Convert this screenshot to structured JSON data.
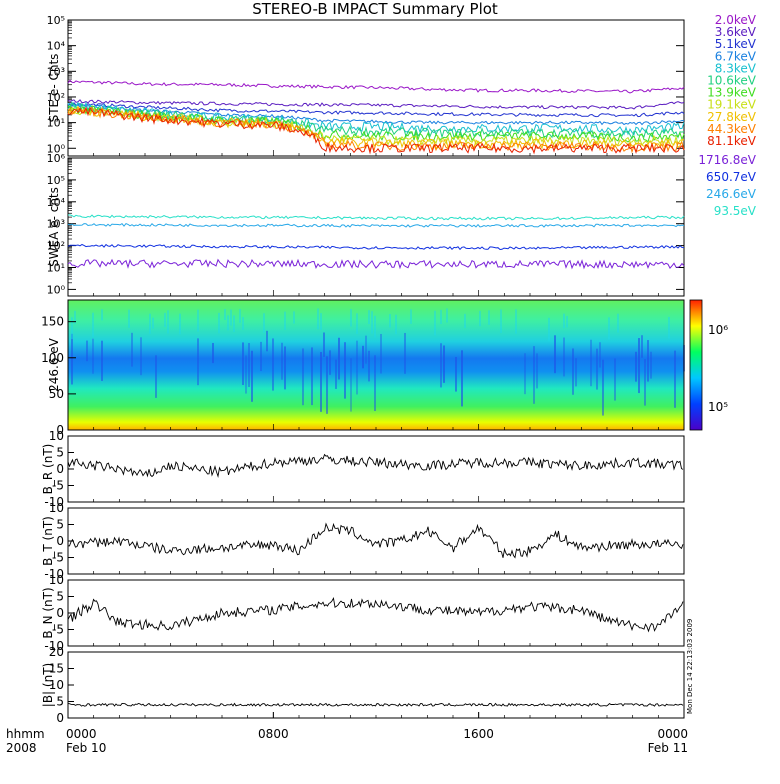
{
  "title": "STEREO-B IMPACT Summary Plot",
  "colors": {
    "2.0keV": "#9a17c8",
    "3.6keV": "#5a1cc0",
    "5.1keV": "#2233d0",
    "6.7keV": "#1a80e0",
    "8.3keV": "#19c0d0",
    "10.6keV": "#20d080",
    "13.9keV": "#40dd20",
    "19.1keV": "#c8e018",
    "27.8keV": "#f0c000",
    "44.3keV": "#ff8000",
    "81.1keV": "#e82000",
    "1716.8eV": "#7a22d8",
    "650.7eV": "#1030e0",
    "246.6eV": "#28a8e8",
    "93.5eV": "#28e0c8"
  },
  "chart_data": [
    {
      "type": "line",
      "panel": "ste",
      "ylabel": "STE e- Cnts",
      "yscale": "log",
      "ylim": [
        0.5,
        100000
      ],
      "yticks": [
        "10⁰",
        "10¹",
        "10²",
        "10³",
        "10⁴",
        "10⁵"
      ],
      "xlim": [
        0,
        24
      ],
      "series": [
        {
          "name": "2.0keV",
          "color": "#9a17c8",
          "points": [
            [
              0,
              400
            ],
            [
              3,
              320
            ],
            [
              6,
              300
            ],
            [
              8,
              270
            ],
            [
              10,
              250
            ],
            [
              12,
              230
            ],
            [
              14,
              200
            ],
            [
              16,
              180
            ],
            [
              18,
              180
            ],
            [
              20,
              170
            ],
            [
              22,
              160
            ],
            [
              24,
              220
            ]
          ]
        },
        {
          "name": "3.6keV",
          "color": "#5a1cc0",
          "points": [
            [
              0,
              70
            ],
            [
              3,
              60
            ],
            [
              6,
              55
            ],
            [
              8,
              52
            ],
            [
              10,
              50
            ],
            [
              12,
              48
            ],
            [
              14,
              45
            ],
            [
              16,
              42
            ],
            [
              18,
              40
            ],
            [
              20,
              40
            ],
            [
              22,
              38
            ],
            [
              24,
              60
            ]
          ]
        },
        {
          "name": "5.1keV",
          "color": "#2233d0",
          "points": [
            [
              0,
              55
            ],
            [
              3,
              40
            ],
            [
              6,
              30
            ],
            [
              8,
              28
            ],
            [
              10,
              25
            ],
            [
              12,
              24
            ],
            [
              14,
              22
            ],
            [
              16,
              21
            ],
            [
              18,
              20
            ],
            [
              20,
              20
            ],
            [
              22,
              19
            ],
            [
              24,
              25
            ]
          ]
        },
        {
          "name": "6.7keV",
          "color": "#1a80e0",
          "points": [
            [
              0,
              50
            ],
            [
              3,
              30
            ],
            [
              6,
              20
            ],
            [
              8,
              18
            ],
            [
              10,
              12
            ],
            [
              12,
              11
            ],
            [
              14,
              10
            ],
            [
              16,
              10
            ],
            [
              18,
              10
            ],
            [
              20,
              10
            ],
            [
              22,
              9
            ],
            [
              24,
              12
            ]
          ]
        },
        {
          "name": "8.3keV",
          "color": "#19c0d0",
          "points": [
            [
              0,
              45
            ],
            [
              3,
              25
            ],
            [
              6,
              15
            ],
            [
              8,
              14
            ],
            [
              10,
              7
            ],
            [
              12,
              7
            ],
            [
              14,
              6
            ],
            [
              16,
              6
            ],
            [
              18,
              6
            ],
            [
              20,
              6
            ],
            [
              22,
              5
            ],
            [
              24,
              7
            ]
          ]
        },
        {
          "name": "10.6keV",
          "color": "#20d080",
          "points": [
            [
              0,
              40
            ],
            [
              3,
              22
            ],
            [
              6,
              13
            ],
            [
              8,
              12
            ],
            [
              10,
              5
            ],
            [
              12,
              4.5
            ],
            [
              14,
              4
            ],
            [
              16,
              4
            ],
            [
              18,
              4
            ],
            [
              20,
              4
            ],
            [
              22,
              3.5
            ],
            [
              24,
              4
            ]
          ]
        },
        {
          "name": "13.9keV",
          "color": "#40dd20",
          "points": [
            [
              0,
              35
            ],
            [
              3,
              20
            ],
            [
              6,
              12
            ],
            [
              8,
              11
            ],
            [
              10,
              3.5
            ],
            [
              12,
              3
            ],
            [
              14,
              3
            ],
            [
              16,
              3
            ],
            [
              18,
              3
            ],
            [
              20,
              3
            ],
            [
              22,
              2.5
            ],
            [
              24,
              3
            ]
          ]
        },
        {
          "name": "19.1keV",
          "color": "#c8e018",
          "points": [
            [
              0,
              33
            ],
            [
              3,
              18
            ],
            [
              6,
              11
            ],
            [
              8,
              10
            ],
            [
              10,
              2.5
            ],
            [
              12,
              2
            ],
            [
              14,
              2
            ],
            [
              16,
              2
            ],
            [
              18,
              2
            ],
            [
              20,
              2
            ],
            [
              22,
              2
            ],
            [
              24,
              2
            ]
          ]
        },
        {
          "name": "27.8keV",
          "color": "#f0c000",
          "points": [
            [
              0,
              32
            ],
            [
              3,
              17
            ],
            [
              6,
              10
            ],
            [
              8,
              9
            ],
            [
              10,
              1.8
            ],
            [
              12,
              1.6
            ],
            [
              14,
              1.5
            ],
            [
              16,
              1.5
            ],
            [
              18,
              1.5
            ],
            [
              20,
              1.5
            ],
            [
              22,
              1.4
            ],
            [
              24,
              1.5
            ]
          ]
        },
        {
          "name": "44.3keV",
          "color": "#ff8000",
          "points": [
            [
              0,
              31
            ],
            [
              3,
              16
            ],
            [
              6,
              9.5
            ],
            [
              8,
              9
            ],
            [
              10,
              1.4
            ],
            [
              12,
              1.2
            ],
            [
              14,
              1.2
            ],
            [
              16,
              1.2
            ],
            [
              18,
              1.2
            ],
            [
              20,
              1.2
            ],
            [
              22,
              1.1
            ],
            [
              24,
              1.2
            ]
          ]
        },
        {
          "name": "81.1keV",
          "color": "#e82000",
          "points": [
            [
              0,
              30
            ],
            [
              3,
              15
            ],
            [
              6,
              9
            ],
            [
              8,
              8
            ],
            [
              10,
              1.1
            ],
            [
              12,
              1.0
            ],
            [
              14,
              1.0
            ],
            [
              16,
              1.0
            ],
            [
              18,
              1.0
            ],
            [
              20,
              1.0
            ],
            [
              22,
              1.0
            ],
            [
              24,
              1.0
            ]
          ]
        }
      ]
    },
    {
      "type": "line",
      "panel": "swea",
      "ylabel": "SWEA e- cnts",
      "yscale": "log",
      "ylim": [
        0.5,
        1000000
      ],
      "yticks": [
        "10⁰",
        "10¹",
        "10²",
        "10³",
        "10⁴",
        "10⁵",
        "10⁶"
      ],
      "xlim": [
        0,
        24
      ],
      "series": [
        {
          "name": "1716.8eV",
          "color": "#7a22d8",
          "points": [
            [
              0,
              15
            ],
            [
              6,
              15
            ],
            [
              12,
              14
            ],
            [
              18,
              14
            ],
            [
              24,
              14
            ]
          ]
        },
        {
          "name": "650.7eV",
          "color": "#1030e0",
          "points": [
            [
              0,
              100
            ],
            [
              6,
              90
            ],
            [
              12,
              80
            ],
            [
              18,
              75
            ],
            [
              24,
              90
            ]
          ]
        },
        {
          "name": "246.6eV",
          "color": "#28a8e8",
          "points": [
            [
              0,
              900
            ],
            [
              6,
              850
            ],
            [
              12,
              800
            ],
            [
              18,
              800
            ],
            [
              24,
              850
            ]
          ]
        },
        {
          "name": "93.5eV",
          "color": "#28e0c8",
          "points": [
            [
              0,
              2200
            ],
            [
              6,
              2000
            ],
            [
              12,
              1800
            ],
            [
              18,
              1700
            ],
            [
              24,
              2000
            ]
          ]
        }
      ]
    },
    {
      "type": "heatmap",
      "panel": "pad",
      "ylabel": "246.6 eV",
      "ylim": [
        0,
        180
      ],
      "yticks": [
        0,
        50,
        100,
        150
      ],
      "xlim": [
        0,
        24
      ],
      "colorbar": {
        "ticks": [
          "10⁵",
          "10⁶"
        ]
      }
    },
    {
      "type": "line",
      "panel": "br",
      "ylabel": "B_R (nT)",
      "ylim": [
        -10,
        10
      ],
      "yticks": [
        10,
        5,
        0,
        -5,
        -10
      ],
      "xlim": [
        0,
        24
      ],
      "series": [
        {
          "points": [
            [
              0,
              2
            ],
            [
              2,
              0
            ],
            [
              3,
              -2
            ],
            [
              4,
              1
            ],
            [
              6,
              -1
            ],
            [
              8,
              2
            ],
            [
              10,
              3
            ],
            [
              12,
              2
            ],
            [
              14,
              1
            ],
            [
              16,
              2
            ],
            [
              18,
              2
            ],
            [
              20,
              1
            ],
            [
              22,
              2
            ],
            [
              24,
              1
            ]
          ]
        }
      ]
    },
    {
      "type": "line",
      "panel": "bt",
      "ylabel": "B_T (nT)",
      "ylim": [
        -10,
        10
      ],
      "yticks": [
        10,
        5,
        0,
        -5,
        -10
      ],
      "xlim": [
        0,
        24
      ],
      "series": [
        {
          "points": [
            [
              0,
              -1
            ],
            [
              2,
              0
            ],
            [
              4,
              -3
            ],
            [
              6,
              -2
            ],
            [
              8,
              -1
            ],
            [
              9,
              -3
            ],
            [
              10,
              4
            ],
            [
              11,
              3
            ],
            [
              12,
              -1
            ],
            [
              13,
              0
            ],
            [
              14,
              3
            ],
            [
              15,
              -2
            ],
            [
              16,
              4
            ],
            [
              17,
              -4
            ],
            [
              18,
              -3
            ],
            [
              19,
              2
            ],
            [
              20,
              -2
            ],
            [
              22,
              -1
            ],
            [
              24,
              -1
            ]
          ]
        }
      ]
    },
    {
      "type": "line",
      "panel": "bn",
      "ylabel": "B_N (nT)",
      "ylim": [
        -10,
        10
      ],
      "yticks": [
        10,
        5,
        0,
        -5,
        -10
      ],
      "xlim": [
        0,
        24
      ],
      "series": [
        {
          "points": [
            [
              0,
              -2
            ],
            [
              1,
              3
            ],
            [
              2,
              -3
            ],
            [
              4,
              -4
            ],
            [
              6,
              0
            ],
            [
              8,
              1
            ],
            [
              10,
              3
            ],
            [
              12,
              3
            ],
            [
              14,
              1
            ],
            [
              16,
              0
            ],
            [
              18,
              2
            ],
            [
              20,
              1
            ],
            [
              21,
              -2
            ],
            [
              22,
              -4
            ],
            [
              23,
              -4
            ],
            [
              24,
              3
            ]
          ]
        }
      ]
    },
    {
      "type": "line",
      "panel": "bmag",
      "ylabel": "|B| (nT)",
      "ylim": [
        0,
        20
      ],
      "yticks": [
        20,
        15,
        10,
        5,
        0
      ],
      "xlim": [
        0,
        24
      ],
      "series": [
        {
          "points": [
            [
              0,
              4
            ],
            [
              4,
              4
            ],
            [
              8,
              4
            ],
            [
              12,
              4
            ],
            [
              16,
              4
            ],
            [
              20,
              4
            ],
            [
              24,
              4
            ]
          ]
        }
      ]
    }
  ],
  "x_axis": {
    "row_label": "hhmm",
    "year_label": "2008",
    "ticks": [
      {
        "value": 0,
        "time": "0000",
        "date": "Feb 10"
      },
      {
        "value": 8,
        "time": "0800",
        "date": ""
      },
      {
        "value": 16,
        "time": "1600",
        "date": ""
      },
      {
        "value": 24,
        "time": "0000",
        "date": "Feb 11"
      }
    ]
  },
  "footer_stamp": "Mon Dec 14 22:13:03 2009"
}
